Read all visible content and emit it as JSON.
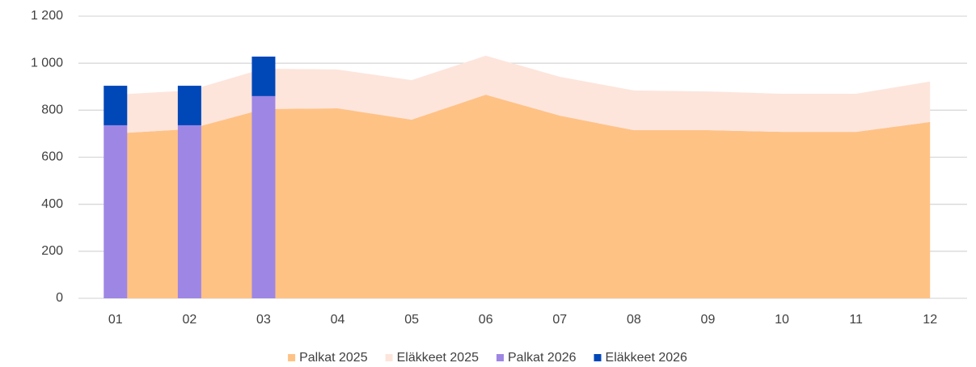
{
  "chart_data": {
    "type": "combo",
    "categories": [
      "01",
      "02",
      "03",
      "04",
      "05",
      "06",
      "07",
      "08",
      "09",
      "10",
      "11",
      "12"
    ],
    "series": [
      {
        "name": "Palkat 2025",
        "type": "area",
        "stack": "2025",
        "color": "#ffc285",
        "values": [
          701,
          720,
          805,
          808,
          760,
          866,
          777,
          715,
          715,
          708,
          708,
          750
        ]
      },
      {
        "name": "Eläkkeet 2025",
        "type": "area",
        "stack": "2025",
        "color": "#fde5dc",
        "values": [
          165,
          164,
          172,
          165,
          168,
          166,
          165,
          169,
          165,
          162,
          162,
          172
        ]
      },
      {
        "name": "Palkat 2026",
        "type": "bar",
        "stack": "2026",
        "color": "#9e86e4",
        "values": [
          736,
          736,
          860,
          null,
          null,
          null,
          null,
          null,
          null,
          null,
          null,
          null
        ]
      },
      {
        "name": "Eläkkeet 2026",
        "type": "bar",
        "stack": "2026",
        "color": "#0047b8",
        "values": [
          168,
          168,
          168,
          null,
          null,
          null,
          null,
          null,
          null,
          null,
          null,
          null
        ]
      }
    ],
    "ylim": [
      0,
      1200
    ],
    "yticks": [
      0,
      200,
      400,
      600,
      800,
      {
        "value": 1000,
        "label": "1 000"
      },
      {
        "value": 1200,
        "label": "1 200"
      }
    ],
    "grid": true,
    "legend": "bottom"
  }
}
